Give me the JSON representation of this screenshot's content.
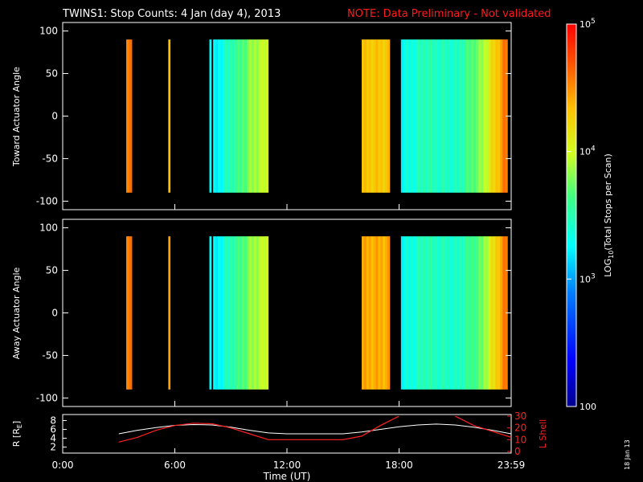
{
  "title": {
    "main": "TWINS1: Stop Counts:  4 Jan (day    4), 2013",
    "note": "NOTE: Data Preliminary - Not validated"
  },
  "panels": [
    {
      "id": "toward",
      "ylabel": "Toward Actuator Angle",
      "yticks": [
        "100",
        "50",
        "0",
        "-50",
        "-100"
      ]
    },
    {
      "id": "away",
      "ylabel": "Away Actuator Angle",
      "yticks": [
        "100",
        "50",
        "0",
        "-50",
        "-100"
      ]
    }
  ],
  "orbit_panel": {
    "ylabel_left": "R [R",
    "ylabel_left_sub": "E",
    "ylabel_left_close": "]",
    "ylabel_right": "L Shell",
    "yticks_left": [
      "8",
      "6",
      "4",
      "2"
    ],
    "yticks_right": [
      "30",
      "20",
      "10",
      "0"
    ]
  },
  "xaxis": {
    "label": "Time (UT)",
    "ticks": [
      "0:00",
      "6:00",
      "12:00",
      "18:00",
      "23:59"
    ]
  },
  "colorbar": {
    "label": "LOG",
    "label_sub": "10",
    "label_rest": "(Total Stops per Scan)",
    "ticks": [
      {
        "base": "10",
        "exp": "5"
      },
      {
        "base": "10",
        "exp": "4"
      },
      {
        "base": "10",
        "exp": "3"
      },
      {
        "base": "100",
        "exp": ""
      }
    ]
  },
  "stamp": "18 Jan 13",
  "colors": {
    "background": "#000000",
    "note_red": "#ff1a1a",
    "lshell_red": "#ff2020",
    "radius_white": "#ffffff"
  },
  "chart_data": {
    "type": "heatmap",
    "x_unit": "hours UT",
    "xlim": [
      0,
      24
    ],
    "ylim": [
      -110,
      110
    ],
    "color_scale": "log",
    "color_range": [
      100,
      100000
    ],
    "toward_segments": [
      {
        "start": 3.4,
        "end": 3.7,
        "log_counts": 4.6
      },
      {
        "start": 5.65,
        "end": 5.75,
        "log_counts": 4.3
      },
      {
        "start": 7.85,
        "end": 7.95,
        "log_counts": 3.3
      },
      {
        "start": 8.05,
        "end": 11.0,
        "log_counts": [
          3.2,
          3.5,
          3.8,
          4.0
        ]
      },
      {
        "start": 16.0,
        "end": 17.5,
        "log_counts": 4.3
      },
      {
        "start": 18.1,
        "end": 23.8,
        "log_counts": [
          3.3,
          3.5,
          3.4,
          3.8,
          4.6
        ]
      }
    ],
    "away_segments": [
      {
        "start": 3.4,
        "end": 3.7,
        "log_counts": 4.6
      },
      {
        "start": 5.65,
        "end": 5.75,
        "log_counts": 4.4
      },
      {
        "start": 7.85,
        "end": 7.95,
        "log_counts": 3.3
      },
      {
        "start": 8.05,
        "end": 11.0,
        "log_counts": [
          3.2,
          3.5,
          3.8,
          4.0
        ]
      },
      {
        "start": 16.0,
        "end": 17.5,
        "log_counts": 4.4
      },
      {
        "start": 18.1,
        "end": 23.8,
        "log_counts": [
          3.3,
          3.5,
          3.4,
          3.7,
          4.6
        ]
      }
    ],
    "radius_series": {
      "name": "R",
      "x": [
        3,
        4,
        5,
        6,
        7,
        8,
        9,
        10,
        11,
        12,
        13,
        14,
        15,
        16,
        17,
        18,
        19,
        20,
        21,
        22,
        23,
        24
      ],
      "y": [
        5.0,
        5.8,
        6.4,
        6.9,
        7.1,
        7.0,
        6.5,
        5.8,
        5.2,
        5.0,
        5.0,
        5.0,
        5.0,
        5.4,
        6.0,
        6.6,
        7.0,
        7.2,
        7.0,
        6.5,
        5.8,
        5.0
      ]
    },
    "lshell_series": {
      "name": "L Shell",
      "x": [
        3,
        4,
        5,
        6,
        7,
        8,
        9,
        10,
        11,
        12,
        13,
        14,
        15,
        16,
        17,
        18,
        21,
        22,
        23,
        24
      ],
      "y": [
        8.0,
        12.0,
        18.0,
        22.0,
        24.0,
        23.5,
        20.0,
        15.0,
        10.0,
        10.0,
        10.0,
        10.0,
        10.0,
        13.0,
        22.0,
        30.0,
        30.0,
        22.0,
        17.0,
        12.0
      ]
    },
    "orbit_ylim_left": [
      1,
      9
    ],
    "orbit_ylim_right": [
      0,
      30
    ]
  }
}
